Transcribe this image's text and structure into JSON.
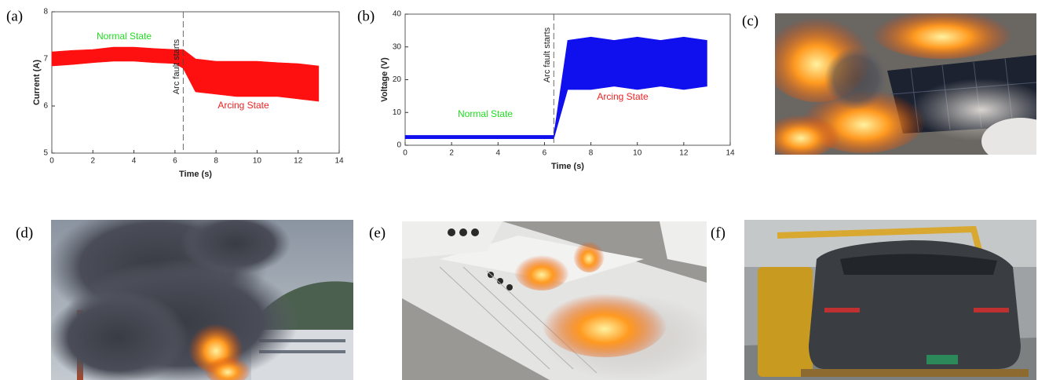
{
  "panel_labels": [
    "(a)",
    "(b)",
    "(c)",
    "(d)",
    "(e)",
    "(f)"
  ],
  "chart_data": [
    {
      "type": "band",
      "x_label": "Time (s)",
      "y_label": "Current (A)",
      "x": [
        0,
        1,
        2,
        3,
        4,
        5,
        6,
        6.4,
        7,
        8,
        9,
        10,
        11,
        12,
        13
      ],
      "series": [
        {
          "color": "#ff1010",
          "values": [
            7.15,
            7.18,
            7.2,
            7.25,
            7.25,
            7.22,
            7.2,
            7.2,
            7.0,
            6.95,
            6.95,
            6.95,
            6.92,
            6.9,
            6.85
          ]
        },
        {
          "color": "#ff1010",
          "values": [
            6.85,
            6.88,
            6.92,
            6.95,
            6.95,
            6.92,
            6.9,
            6.8,
            6.3,
            6.25,
            6.2,
            6.2,
            6.2,
            6.15,
            6.1
          ]
        }
      ],
      "annotations": [
        {
          "text": "Arc fault starts",
          "x": 6.4
        },
        {
          "text": "Normal State",
          "color": "#22dd22"
        },
        {
          "text": "Arcing State",
          "color": "#ee2222"
        }
      ],
      "xlim": [
        0,
        14
      ],
      "xticks": [
        0,
        2,
        4,
        6,
        8,
        10,
        12,
        14
      ],
      "ylim": [
        5,
        8
      ],
      "yticks": [
        5,
        6,
        7,
        8
      ]
    },
    {
      "type": "band",
      "x_label": "Time (s)",
      "y_label": "Voltage (V)",
      "x": [
        0,
        1,
        2,
        3,
        4,
        5,
        6,
        6.4,
        7,
        8,
        9,
        10,
        11,
        12,
        13
      ],
      "series": [
        {
          "color": "#1010ee",
          "values": [
            3,
            3,
            3,
            3,
            3,
            3,
            3,
            3,
            32,
            33,
            32,
            33,
            32,
            33,
            32
          ]
        },
        {
          "color": "#1010ee",
          "values": [
            2,
            2,
            2,
            2,
            2,
            2,
            2,
            2,
            17,
            17,
            18,
            17,
            18,
            17,
            18
          ]
        }
      ],
      "annotations": [
        {
          "text": "Arc fault starts",
          "x": 6.4
        },
        {
          "text": "Normal State",
          "color": "#22dd22"
        },
        {
          "text": "Arcing State",
          "color": "#ee2222"
        }
      ],
      "xlim": [
        0,
        14
      ],
      "xticks": [
        0,
        2,
        4,
        6,
        8,
        10,
        12,
        14
      ],
      "ylim": [
        0,
        40
      ],
      "yticks": [
        0,
        10,
        20,
        30,
        40
      ]
    }
  ]
}
